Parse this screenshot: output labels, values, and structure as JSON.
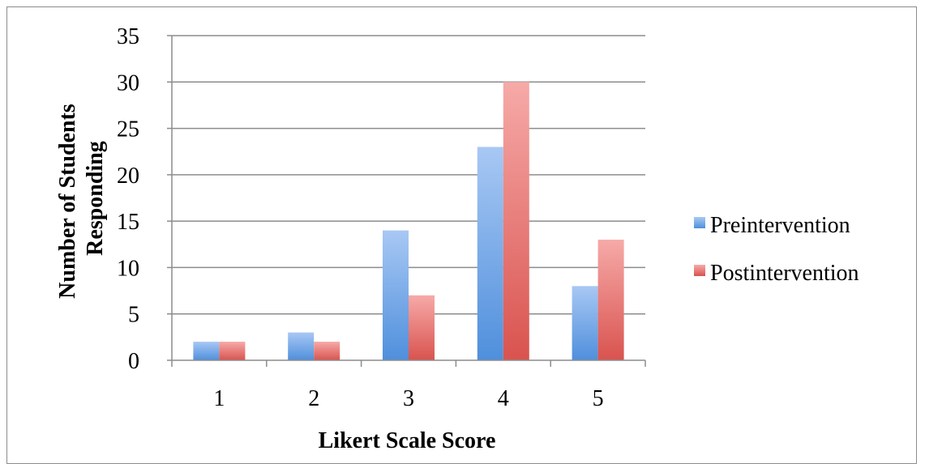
{
  "chart_data": {
    "type": "bar",
    "categories": [
      "1",
      "2",
      "3",
      "4",
      "5"
    ],
    "series": [
      {
        "name": "Preintervention",
        "values": [
          2,
          3,
          14,
          23,
          8
        ],
        "color_light": "#a8c8f4",
        "color_dark": "#4f8fdc"
      },
      {
        "name": "Postintervention",
        "values": [
          2,
          2,
          7,
          30,
          13
        ],
        "color_light": "#f6aaa8",
        "color_dark": "#d9534f"
      }
    ],
    "xlabel": "Likert Scale Score",
    "ylabel": [
      "Number of Students",
      "Responding"
    ],
    "ylim": [
      0,
      35
    ],
    "yticks": [
      "0",
      "5",
      "10",
      "15",
      "20",
      "25",
      "30",
      "35"
    ],
    "grid": true,
    "legend_position": "right"
  },
  "colors": {
    "gridline": "#8c8c8c",
    "axis": "#8c8c8c",
    "border": "#8c8c8c"
  }
}
